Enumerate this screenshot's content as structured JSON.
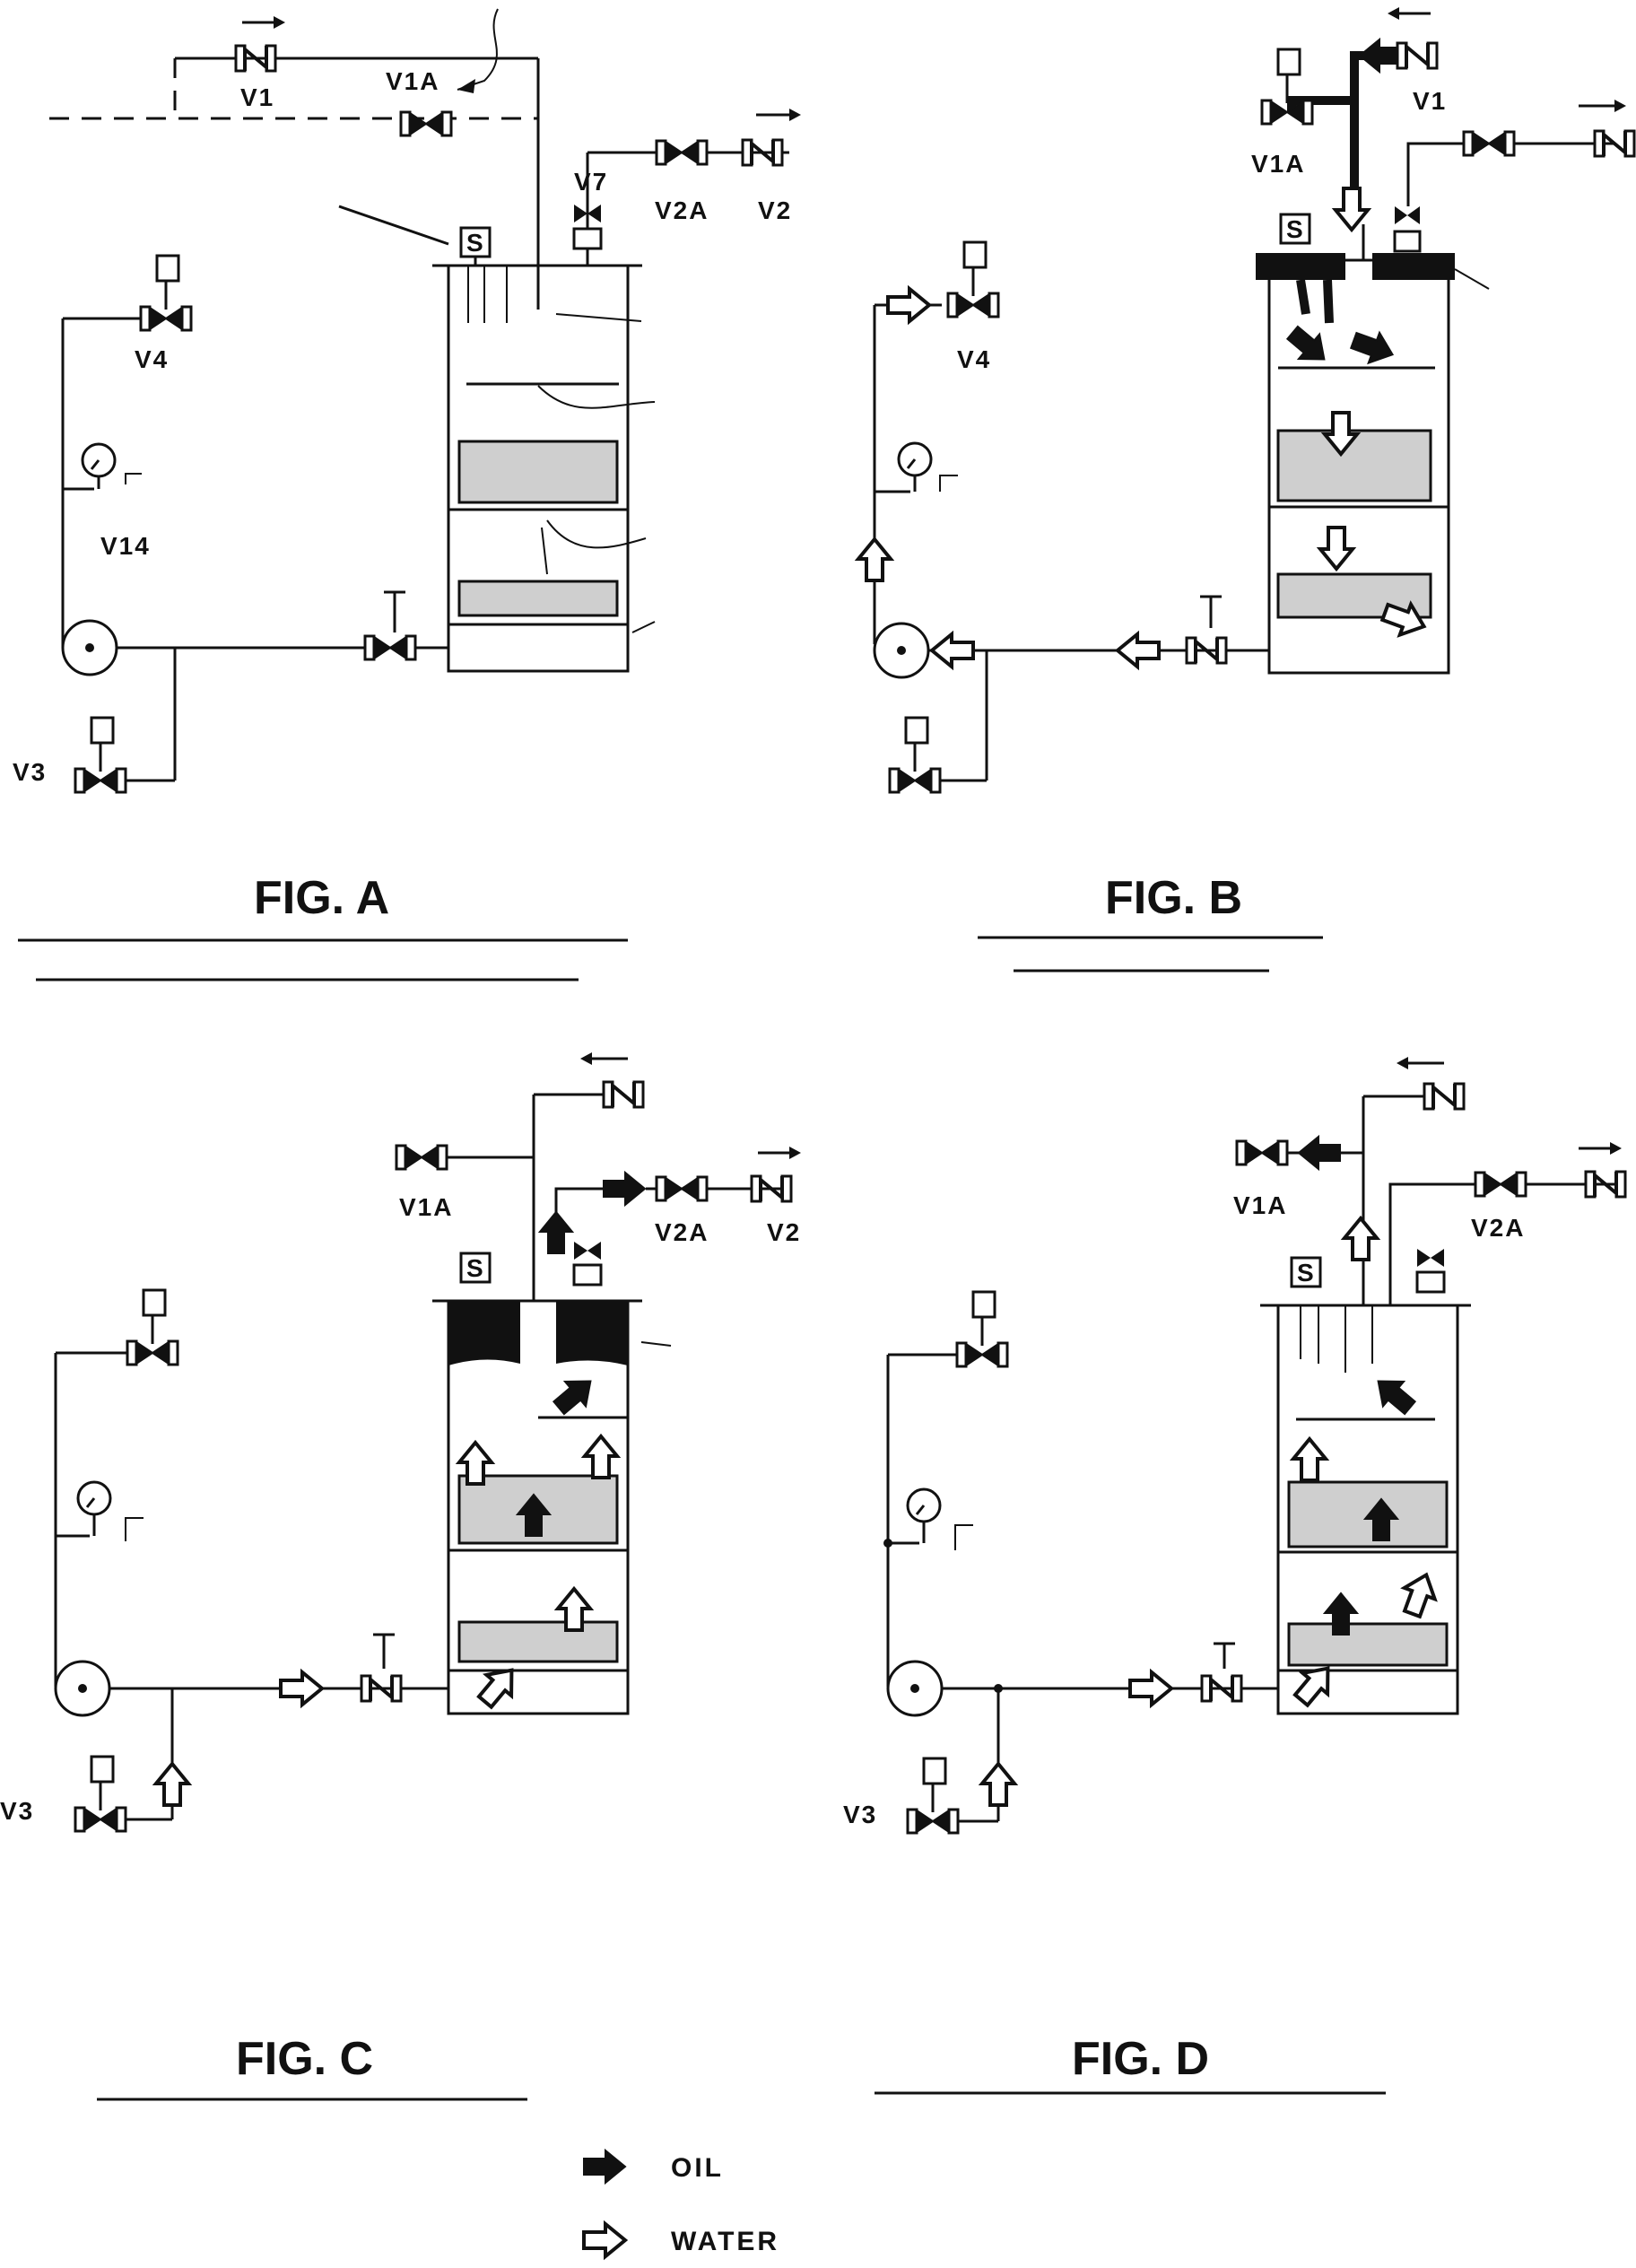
{
  "figures": [
    {
      "id": "A",
      "caption": "FIG. A",
      "labels": {
        "v1": "V1",
        "v1a": "V1A",
        "v7": "V7",
        "v2a": "V2A",
        "v2": "V2",
        "v4": "V4",
        "v14": "V14",
        "v3": "V3",
        "s": "S"
      }
    },
    {
      "id": "B",
      "caption": "FIG. B",
      "labels": {
        "v1": "V1",
        "v1a": "V1A",
        "v4": "V4",
        "s": "S"
      }
    },
    {
      "id": "C",
      "caption": "FIG. C",
      "labels": {
        "v1a": "V1A",
        "v2a": "V2A",
        "v2": "V2",
        "v3": "V3",
        "s": "S"
      }
    },
    {
      "id": "D",
      "caption": "FIG. D",
      "labels": {
        "v1a": "V1A",
        "v2a": "V2A",
        "v3": "V3",
        "s": "S"
      }
    }
  ],
  "legend": {
    "oil": "OIL",
    "water": "WATER"
  }
}
